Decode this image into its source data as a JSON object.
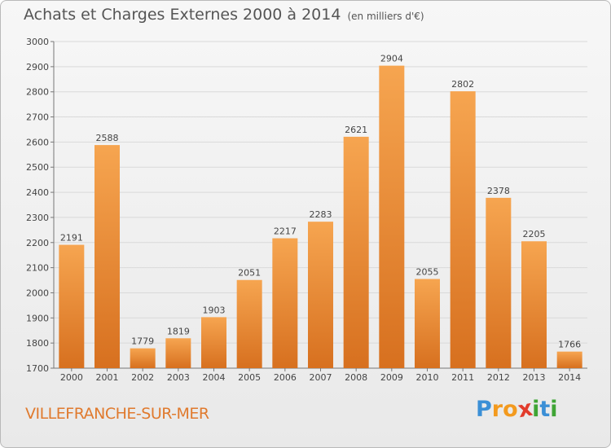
{
  "title": "Achats et Charges Externes 2000 à 2014",
  "subtitle": "(en milliers d'€)",
  "location": "VILLEFRANCHE-SUR-MER",
  "brand": {
    "letters": [
      "P",
      "r",
      "o",
      "x",
      "i",
      "t",
      "i"
    ],
    "colors": [
      "#3b8fd6",
      "#f39a1e",
      "#f39a1e",
      "#e23c2c",
      "#3fa535",
      "#3b8fd6",
      "#3fa535"
    ]
  },
  "colors": {
    "bar_top": "#f6a550",
    "bar_bottom": "#d7701f",
    "grid": "#d9d9d9",
    "axis": "#777777",
    "text": "#444444"
  },
  "chart_data": {
    "type": "bar",
    "categories": [
      "2000",
      "2001",
      "2002",
      "2003",
      "2004",
      "2005",
      "2006",
      "2007",
      "2008",
      "2009",
      "2010",
      "2011",
      "2012",
      "2013",
      "2014"
    ],
    "values": [
      2191,
      2588,
      1779,
      1819,
      1903,
      2051,
      2217,
      2283,
      2621,
      2904,
      2055,
      2802,
      2378,
      2205,
      1766
    ],
    "ylim": [
      1700,
      3000
    ],
    "yticks": [
      1700,
      1800,
      1900,
      2000,
      2100,
      2200,
      2300,
      2400,
      2500,
      2600,
      2700,
      2800,
      2900,
      3000
    ],
    "grid": true,
    "data_labels": true
  }
}
